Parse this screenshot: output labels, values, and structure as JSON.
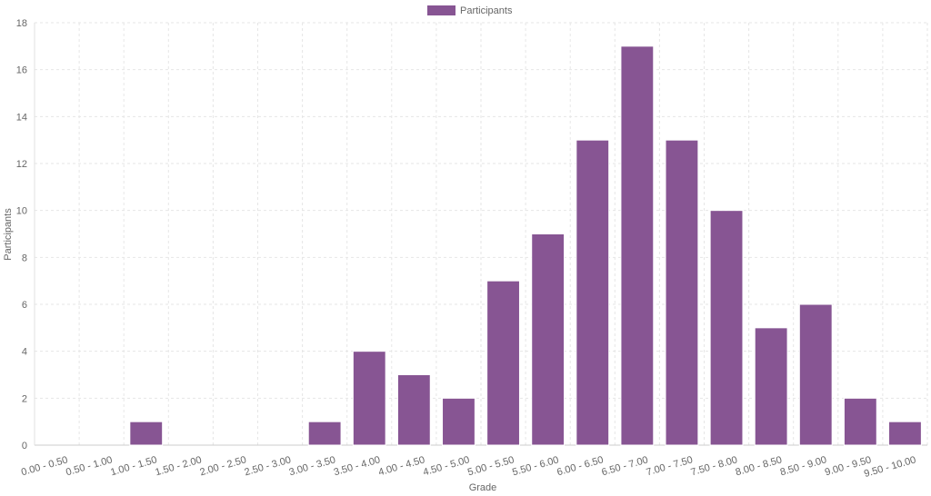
{
  "chart_data": {
    "type": "bar",
    "categories": [
      "0.00 - 0.50",
      "0.50 - 1.00",
      "1.00 - 1.50",
      "1.50 - 2.00",
      "2.00 - 2.50",
      "2.50 - 3.00",
      "3.00 - 3.50",
      "3.50 - 4.00",
      "4.00 - 4.50",
      "4.50 - 5.00",
      "5.00 - 5.50",
      "5.50 - 6.00",
      "6.00 - 6.50",
      "6.50 - 7.00",
      "7.00 - 7.50",
      "7.50 - 8.00",
      "8.00 - 8.50",
      "8.50 - 9.00",
      "9.00 - 9.50",
      "9.50 - 10.00"
    ],
    "series": [
      {
        "name": "Participants",
        "values": [
          0,
          0,
          1,
          0,
          0,
          0,
          1,
          4,
          3,
          2,
          7,
          9,
          13,
          17,
          13,
          10,
          5,
          6,
          2,
          1
        ]
      }
    ],
    "xlabel": "Grade",
    "ylabel": "Participants",
    "ylim": [
      0,
      18
    ],
    "yticks": [
      0,
      2,
      4,
      6,
      8,
      10,
      12,
      14,
      16,
      18
    ],
    "grid": true,
    "legend_position": "top-center",
    "bar_color": "#875593"
  }
}
